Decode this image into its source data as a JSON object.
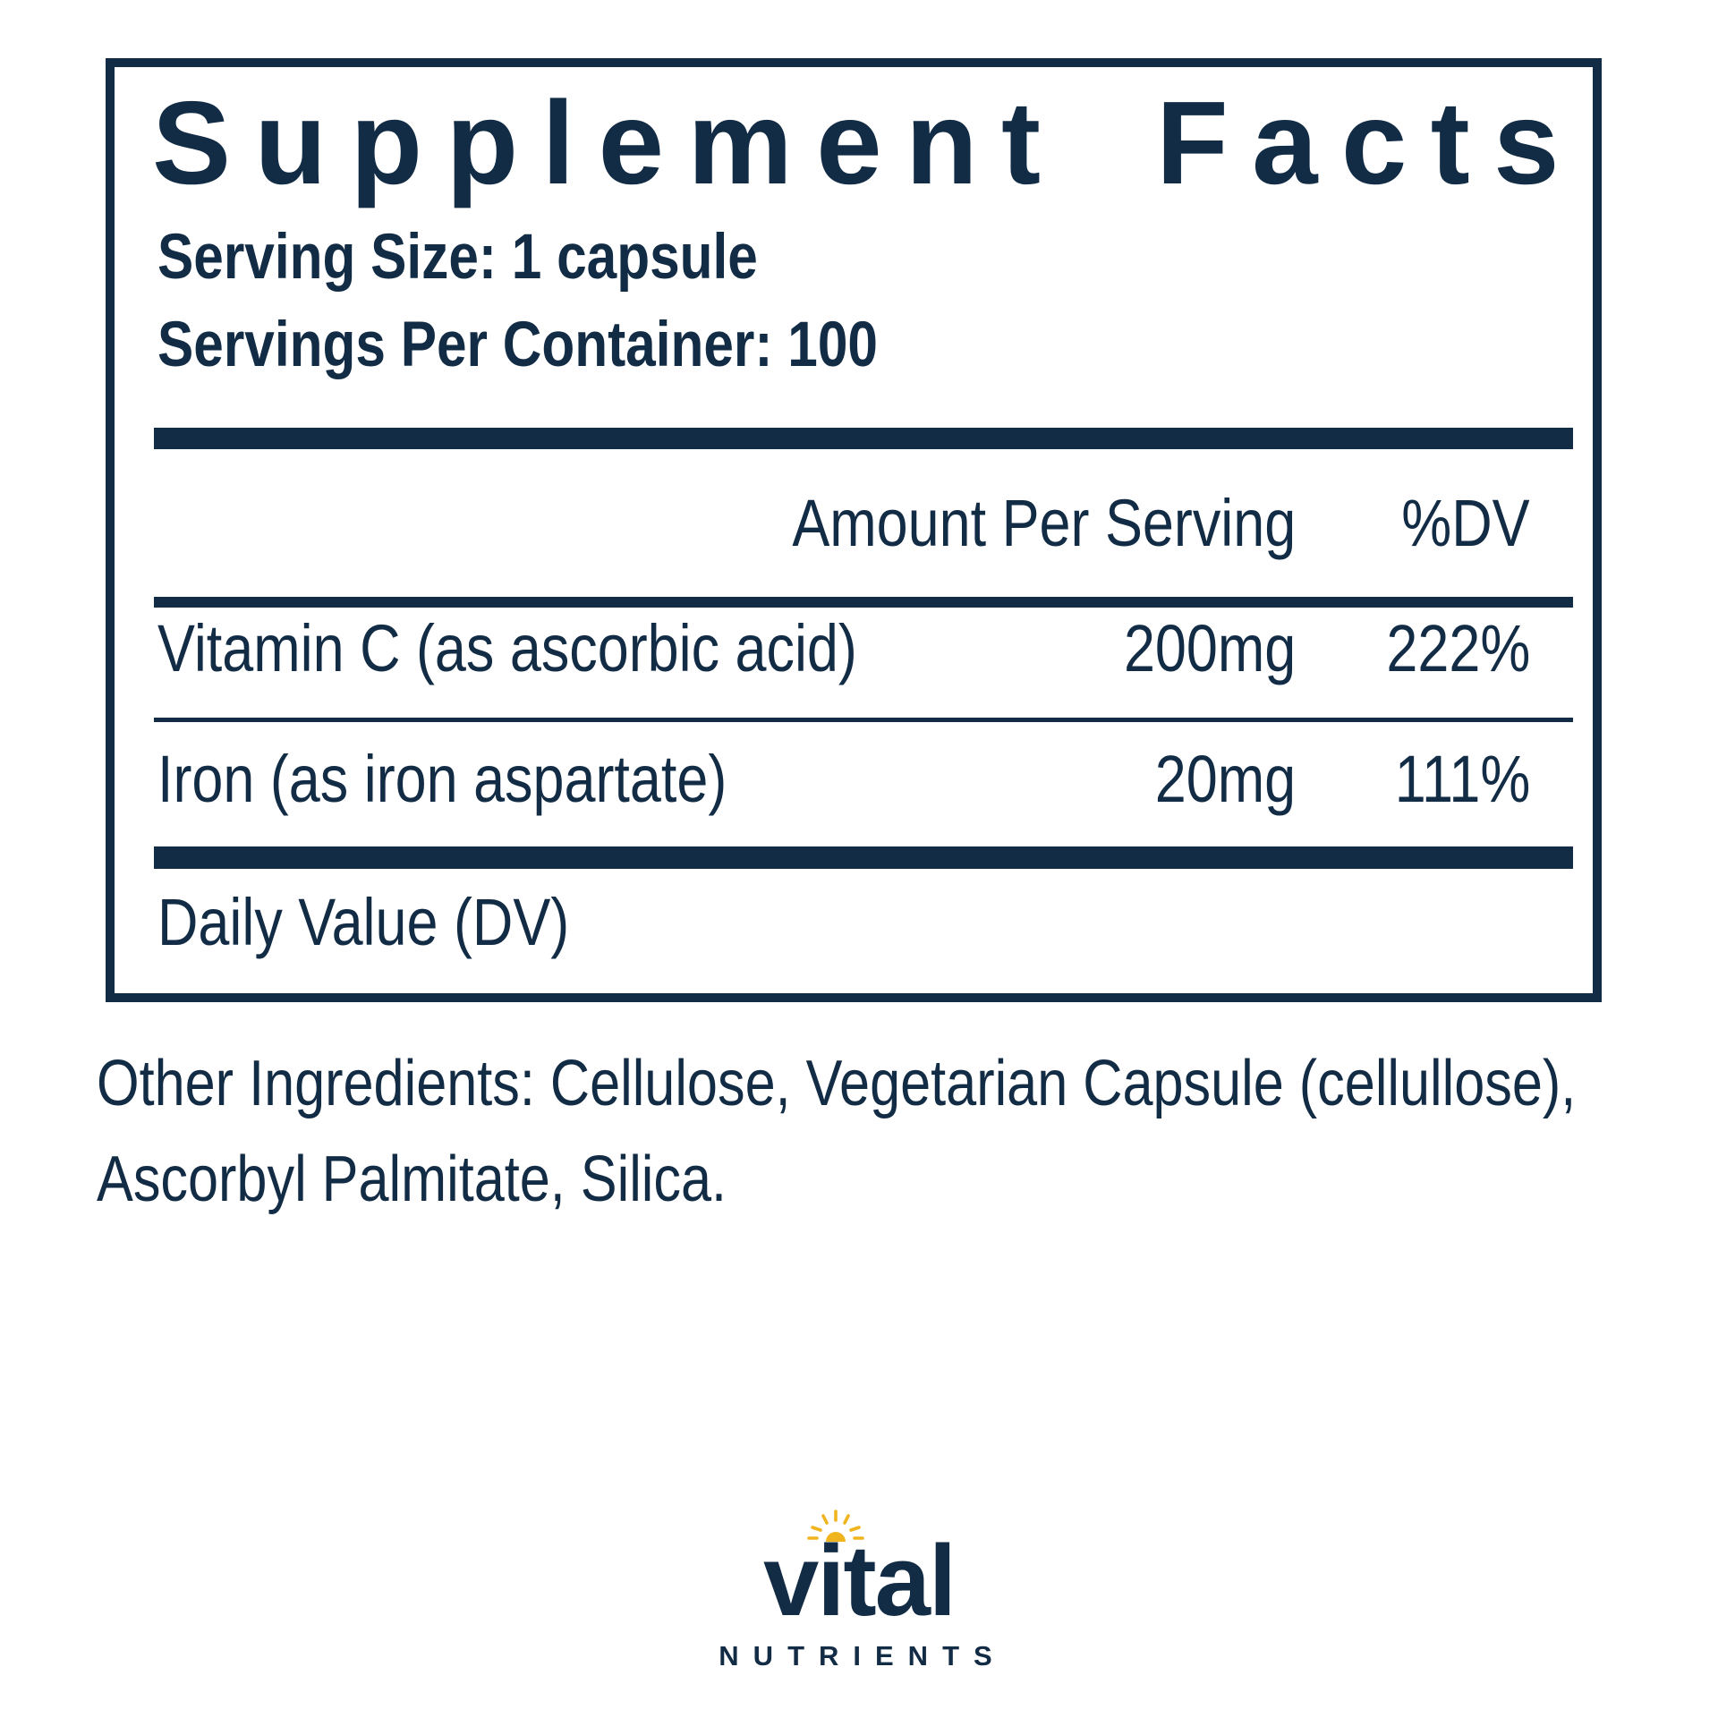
{
  "colors": {
    "navy": "#132c45",
    "gold": "#f0b41f"
  },
  "supplement_facts": {
    "title": "Supplement Facts",
    "serving_size": "Serving Size: 1 capsule",
    "servings_per_container": "Servings Per Container: 100",
    "columns": {
      "amount": "Amount Per Serving",
      "dv": "%DV"
    },
    "rows": [
      {
        "name": "Vitamin C (as ascorbic acid)",
        "amount": "200mg",
        "dv": "222%"
      },
      {
        "name": "Iron (as iron aspartate)",
        "amount": "20mg",
        "dv": "111%"
      }
    ],
    "footnote": "Daily Value (DV)"
  },
  "other_ingredients": {
    "lines": [
      "Other Ingredients: Cellulose, Vegetarian Capsule (cellullose),",
      "Ascorbyl Palmitate, Silica."
    ]
  },
  "logo": {
    "brand": "vital",
    "subtext": "NUTRIENTS",
    "icon": "sun-icon"
  }
}
